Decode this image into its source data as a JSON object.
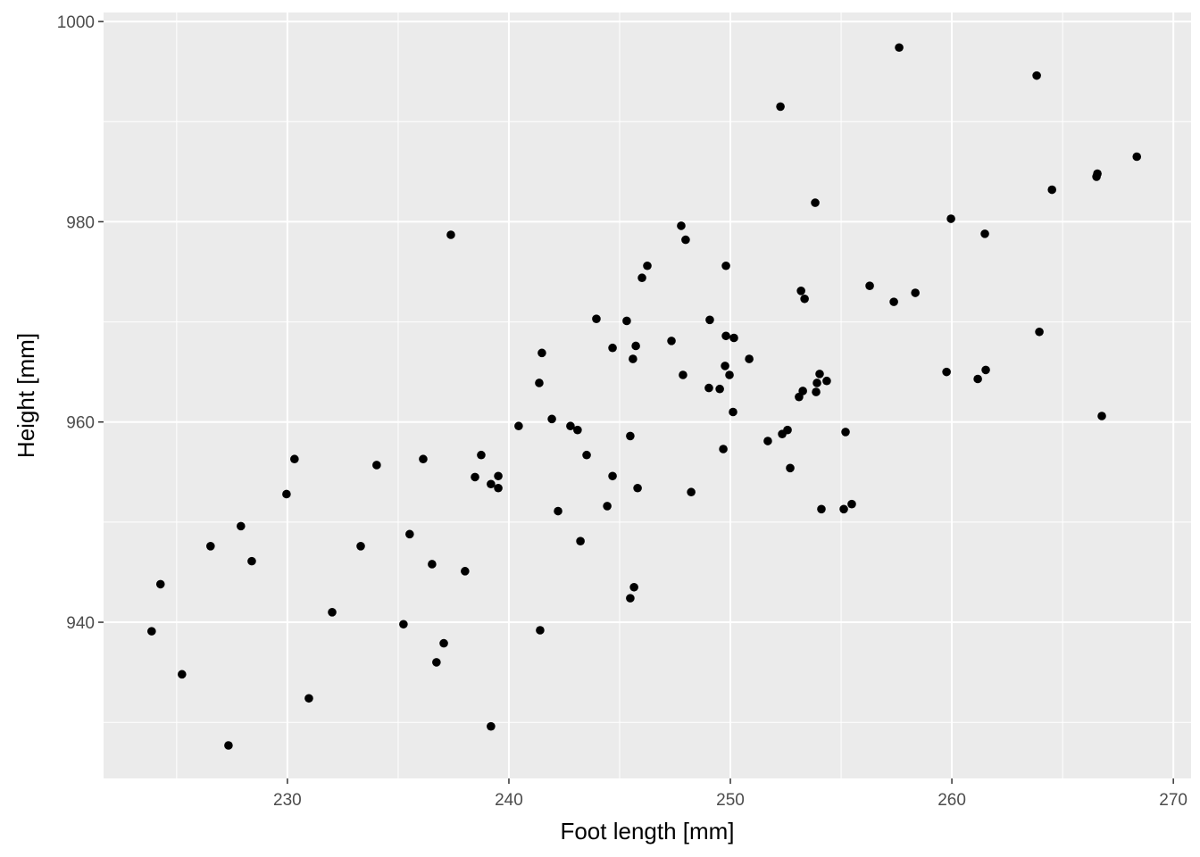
{
  "chart_data": {
    "type": "scatter",
    "xlabel": "Foot length [mm]",
    "ylabel": "Height [mm]",
    "color": "#000000",
    "grid": true,
    "xlim": [
      221.7,
      270.8
    ],
    "xticks": [
      230,
      240,
      250,
      260,
      270
    ],
    "ylim": [
      924.4,
      1000.9
    ],
    "yticks": [
      940,
      960,
      980,
      1000
    ],
    "x": [
      223.87,
      224.27,
      225.24,
      226.53,
      227.34,
      227.9,
      228.39,
      229.96,
      230.32,
      230.97,
      232.02,
      233.31,
      234.03,
      235.24,
      235.52,
      236.13,
      236.53,
      236.73,
      237.06,
      237.38,
      238.02,
      238.47,
      238.75,
      239.19,
      239.19,
      239.52,
      239.52,
      240.44,
      241.41,
      241.37,
      241.49,
      241.94,
      242.22,
      242.78,
      243.1,
      243.23,
      243.51,
      243.95,
      244.44,
      244.68,
      244.68,
      245.32,
      245.48,
      245.48,
      245.6,
      245.65,
      245.73,
      245.81,
      246.01,
      246.25,
      247.34,
      247.78,
      247.86,
      247.98,
      248.23,
      249.03,
      249.07,
      249.52,
      249.68,
      249.76,
      249.8,
      249.8,
      249.96,
      250.16,
      250.12,
      250.85,
      251.69,
      252.26,
      252.34,
      252.58,
      252.7,
      253.1,
      253.19,
      253.27,
      253.35,
      253.83,
      253.87,
      253.91,
      254.03,
      254.11,
      254.35,
      255.12,
      255.2,
      255.48,
      256.29,
      257.38,
      257.62,
      258.35,
      259.76,
      259.96,
      261.17,
      261.49,
      261.53,
      263.83,
      263.95,
      264.52,
      266.53,
      266.57,
      266.77,
      268.35
    ],
    "values": [
      939.1,
      943.8,
      934.8,
      947.6,
      927.7,
      949.6,
      946.1,
      952.8,
      956.3,
      932.4,
      941.0,
      947.6,
      955.7,
      939.8,
      948.8,
      956.3,
      945.8,
      936.0,
      937.9,
      978.7,
      945.1,
      954.5,
      956.7,
      929.6,
      953.8,
      954.6,
      953.4,
      959.6,
      939.2,
      963.9,
      966.9,
      960.3,
      951.1,
      959.6,
      959.2,
      948.1,
      956.7,
      970.3,
      951.6,
      967.4,
      954.6,
      970.1,
      942.4,
      958.6,
      966.3,
      943.5,
      967.6,
      953.4,
      974.4,
      975.6,
      968.1,
      979.6,
      964.7,
      978.2,
      953.0,
      963.4,
      970.2,
      963.3,
      957.3,
      965.6,
      975.6,
      968.6,
      964.7,
      968.4,
      961.0,
      966.3,
      958.1,
      991.5,
      958.8,
      959.2,
      955.4,
      962.5,
      973.1,
      963.1,
      972.3,
      981.9,
      963.0,
      963.9,
      964.8,
      951.3,
      964.1,
      951.3,
      959.0,
      951.8,
      973.6,
      972.0,
      997.4,
      972.9,
      965.0,
      980.3,
      964.3,
      978.8,
      965.2,
      994.6,
      969.0,
      983.2,
      984.5,
      984.8,
      960.6,
      986.5
    ]
  }
}
